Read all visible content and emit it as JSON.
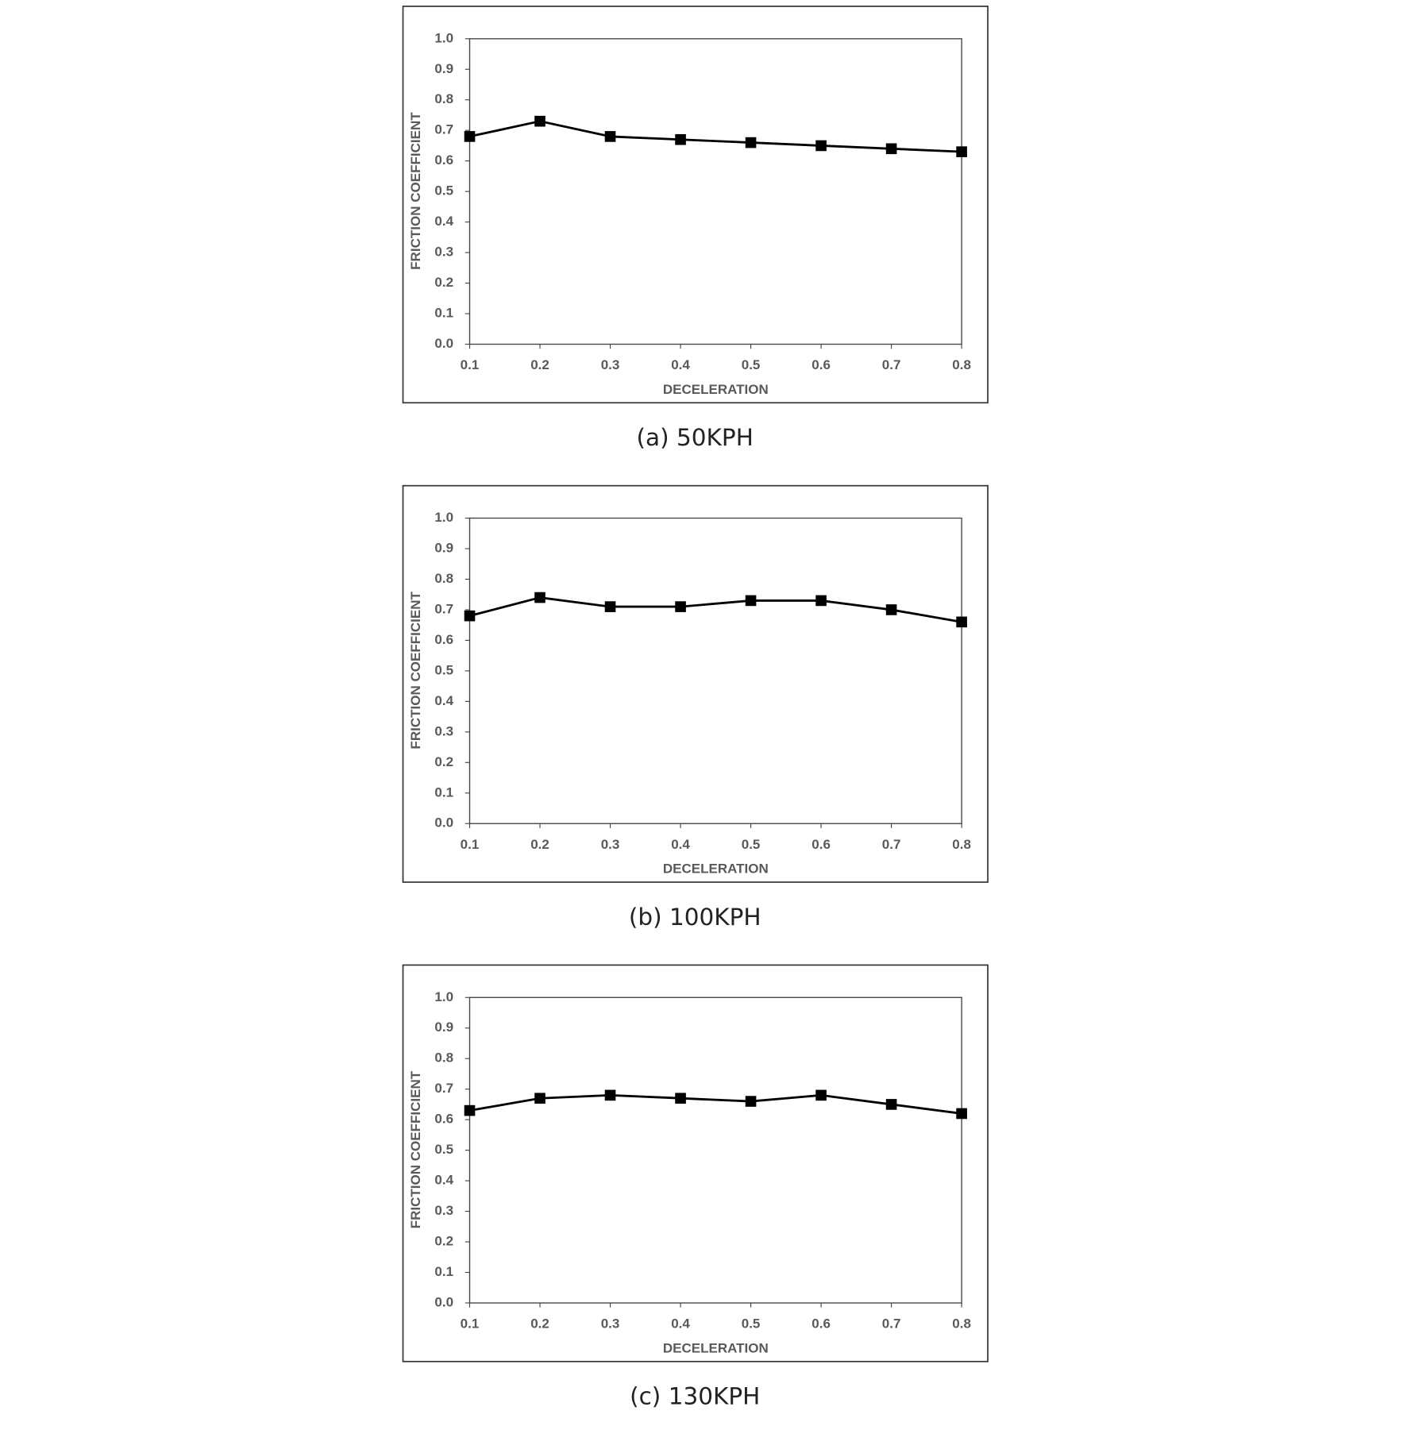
{
  "chart_data": [
    {
      "type": "line",
      "caption": "(a)  50KPH",
      "xlabel": "DECELERATION",
      "ylabel": "FRICTION COEFFICIENT",
      "x": [
        0.1,
        0.2,
        0.3,
        0.4,
        0.5,
        0.6,
        0.7,
        0.8
      ],
      "values": [
        0.68,
        0.73,
        0.68,
        0.67,
        0.66,
        0.65,
        0.64,
        0.63
      ],
      "color": "#000000",
      "xlim": [
        0.1,
        0.8
      ],
      "xticks": [
        0.1,
        0.2,
        0.3,
        0.4,
        0.5,
        0.6,
        0.7,
        0.8
      ],
      "ylim": [
        0,
        1
      ],
      "yticks": [
        {
          "value": 0,
          "label": "0.0"
        },
        0.1,
        0.2,
        0.3,
        0.4,
        0.5,
        0.6,
        0.7,
        0.8,
        0.9,
        {
          "value": 1,
          "label": "1.0"
        }
      ],
      "grid": false
    },
    {
      "type": "line",
      "caption": "(b)  100KPH",
      "xlabel": "DECELERATION",
      "ylabel": "FRICTION COEFFICIENT",
      "x": [
        0.1,
        0.2,
        0.3,
        0.4,
        0.5,
        0.6,
        0.7,
        0.8
      ],
      "values": [
        0.68,
        0.74,
        0.71,
        0.71,
        0.73,
        0.73,
        0.7,
        0.66
      ],
      "color": "#000000",
      "xlim": [
        0.1,
        0.8
      ],
      "xticks": [
        0.1,
        0.2,
        0.3,
        0.4,
        0.5,
        0.6,
        0.7,
        0.8
      ],
      "ylim": [
        0,
        1
      ],
      "yticks": [
        {
          "value": 0,
          "label": "0.0"
        },
        0.1,
        0.2,
        0.3,
        0.4,
        0.5,
        0.6,
        0.7,
        0.8,
        0.9,
        {
          "value": 1,
          "label": "1.0"
        }
      ],
      "grid": false
    },
    {
      "type": "line",
      "caption": "(c)  130KPH",
      "xlabel": "DECELERATION",
      "ylabel": "FRICTION COEFFICIENT",
      "x": [
        0.1,
        0.2,
        0.3,
        0.4,
        0.5,
        0.6,
        0.7,
        0.8
      ],
      "values": [
        0.63,
        0.67,
        0.68,
        0.67,
        0.66,
        0.68,
        0.65,
        0.62
      ],
      "color": "#000000",
      "xlim": [
        0.1,
        0.8
      ],
      "xticks": [
        0.1,
        0.2,
        0.3,
        0.4,
        0.5,
        0.6,
        0.7,
        0.8
      ],
      "ylim": [
        0,
        1
      ],
      "yticks": [
        {
          "value": 0,
          "label": "0.0"
        },
        0.1,
        0.2,
        0.3,
        0.4,
        0.5,
        0.6,
        0.7,
        0.8,
        0.9,
        {
          "value": 1,
          "label": "1.0"
        }
      ],
      "grid": false
    }
  ]
}
